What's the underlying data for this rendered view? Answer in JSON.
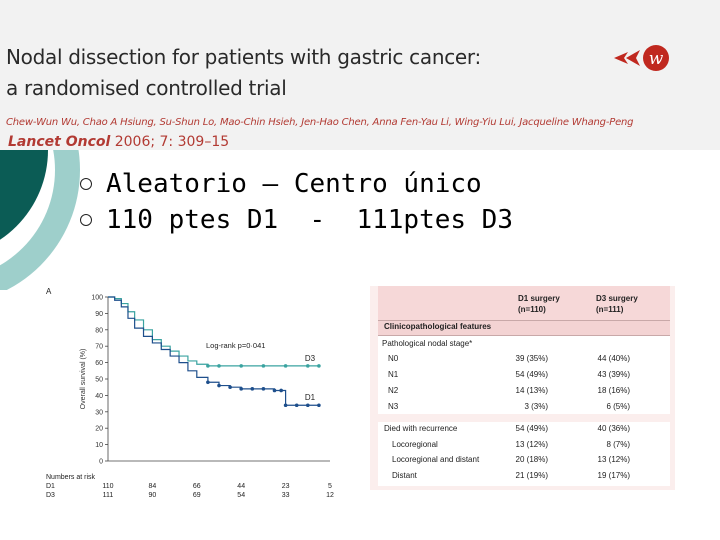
{
  "paper": {
    "title_line1": "Nodal dissection for patients with gastric cancer:",
    "title_line2": "a randomised controlled trial",
    "authors": "Chew-Wun Wu, Chao A Hsiung, Su-Shun Lo, Mao-Chin Hsieh, Jen-Hao Chen, Anna Fen-Yau Li, Wing-Yiu Lui, Jacqueline Whang-Peng",
    "journal": "Lancet Oncol",
    "citation_rest": " 2006; 7: 309–15"
  },
  "bullets": [
    "Aleatorio – Centro único",
    "110 ptes D1  -  111ptes D3"
  ],
  "chart_data": {
    "type": "line",
    "panel_label": "A",
    "ylabel": "Overall survival (%)",
    "ylim": [
      0,
      100
    ],
    "yticks": [
      0,
      10,
      20,
      30,
      40,
      50,
      60,
      70,
      80,
      90,
      100
    ],
    "xlim": [
      0,
      10
    ],
    "annotation": "Log-rank p=0·041",
    "series": [
      {
        "name": "D3",
        "color": "#3aa3a0",
        "x": [
          0,
          0.3,
          0.6,
          0.9,
          1.2,
          1.6,
          2.0,
          2.4,
          2.8,
          3.2,
          3.6,
          4.0,
          4.5,
          5.0,
          6.0,
          7.0,
          8.0,
          9.0,
          9.5
        ],
        "y": [
          100,
          99,
          96,
          91,
          86,
          80,
          74,
          70,
          67,
          64,
          61,
          59,
          58,
          58,
          58,
          58,
          58,
          58,
          58
        ]
      },
      {
        "name": "D1",
        "color": "#1e4f8c",
        "x": [
          0,
          0.3,
          0.6,
          0.9,
          1.2,
          1.6,
          2.0,
          2.4,
          2.8,
          3.2,
          3.6,
          4.0,
          4.5,
          5.0,
          5.5,
          6.0,
          6.5,
          7.0,
          7.5,
          7.8,
          8.0,
          8.5,
          9.0,
          9.5
        ],
        "y": [
          100,
          98,
          94,
          87,
          81,
          76,
          72,
          68,
          64,
          60,
          55,
          51,
          48,
          46,
          45,
          44,
          44,
          44,
          43,
          43,
          34,
          34,
          34,
          34
        ]
      }
    ],
    "risk_table": {
      "title": "Numbers at risk",
      "rows": [
        {
          "label": "D1",
          "values": [
            "110",
            "84",
            "66",
            "44",
            "23",
            "5"
          ]
        },
        {
          "label": "D3",
          "values": [
            "111",
            "90",
            "69",
            "54",
            "33",
            "12"
          ]
        }
      ]
    }
  },
  "table": {
    "col1": {
      "line1": "D1 surgery",
      "line2": "(n=110)"
    },
    "col2": {
      "line1": "D3 surgery",
      "line2": "(n=111)"
    },
    "section": "Clinicopathological features",
    "stage_header": "Pathological nodal stage*",
    "stage_rows": [
      {
        "label": "N0",
        "d1": "39 (35%)",
        "d3": "44 (40%)"
      },
      {
        "label": "N1",
        "d1": "54 (49%)",
        "d3": "43 (39%)"
      },
      {
        "label": "N2",
        "d1": "14 (13%)",
        "d3": "18 (16%)"
      },
      {
        "label": "N3",
        "d1": "3 (3%)",
        "d3": "6 (5%)"
      }
    ],
    "recurrence_rows": [
      {
        "label": "Died with recurrence",
        "d1": "54 (49%)",
        "d3": "40 (36%)"
      },
      {
        "label": "Locoregional",
        "d1": "13 (12%)",
        "d3": "8 (7%)"
      },
      {
        "label": "Locoregional and distant",
        "d1": "20 (18%)",
        "d3": "13 (12%)"
      },
      {
        "label": "Distant",
        "d1": "21 (19%)",
        "d3": "19 (17%)"
      }
    ]
  },
  "colors": {
    "accent_red": "#b23a33",
    "teal_dark": "#0b5c55",
    "teal_light": "#9ecfcb"
  }
}
